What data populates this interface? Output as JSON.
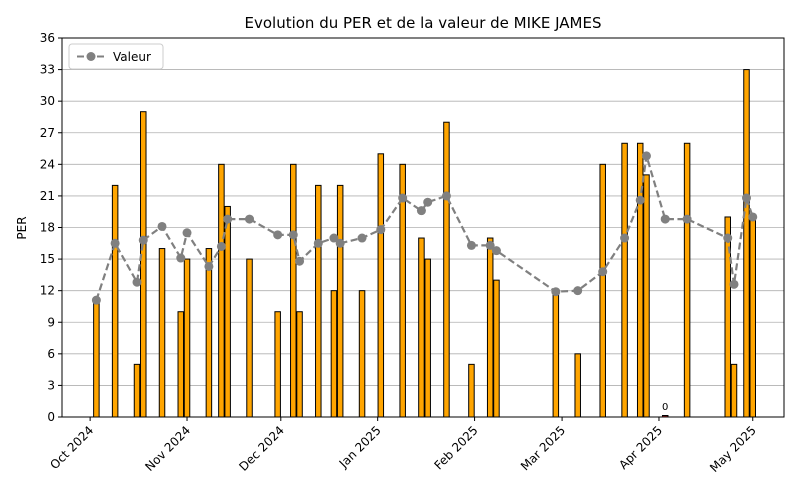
{
  "chart_data": {
    "type": "bar",
    "title": "Evolution du PER et de la valeur de MIKE JAMES",
    "ylabel": "PER",
    "xlabel": "",
    "ylim": [
      0,
      36
    ],
    "yticks": [
      0,
      3,
      6,
      9,
      12,
      15,
      18,
      21,
      24,
      27,
      30,
      33,
      36
    ],
    "xlim": [
      "2024-09-22",
      "2025-05-11"
    ],
    "xticks": [
      {
        "date": "2024-10-01",
        "label": "Oct 2024"
      },
      {
        "date": "2024-11-01",
        "label": "Nov 2024"
      },
      {
        "date": "2024-12-01",
        "label": "Dec 2024"
      },
      {
        "date": "2025-01-01",
        "label": "Jan 2025"
      },
      {
        "date": "2025-02-01",
        "label": "Feb 2025"
      },
      {
        "date": "2025-03-01",
        "label": "Mar 2025"
      },
      {
        "date": "2025-04-01",
        "label": "Apr 2025"
      },
      {
        "date": "2025-05-01",
        "label": "May 2025"
      }
    ],
    "grid": "horizontal",
    "legend_position": "top-left",
    "bar_color": "#ffa500",
    "line_color": "#808080",
    "series": [
      {
        "type": "bar",
        "points": [
          {
            "date": "2024-10-03",
            "value": 11
          },
          {
            "date": "2024-10-09",
            "value": 22
          },
          {
            "date": "2024-10-16",
            "value": 5
          },
          {
            "date": "2024-10-18",
            "value": 29
          },
          {
            "date": "2024-10-24",
            "value": 16
          },
          {
            "date": "2024-10-30",
            "value": 10
          },
          {
            "date": "2024-11-01",
            "value": 15
          },
          {
            "date": "2024-11-08",
            "value": 16
          },
          {
            "date": "2024-11-12",
            "value": 24
          },
          {
            "date": "2024-11-14",
            "value": 20
          },
          {
            "date": "2024-11-21",
            "value": 15
          },
          {
            "date": "2024-11-30",
            "value": 10
          },
          {
            "date": "2024-12-05",
            "value": 24
          },
          {
            "date": "2024-12-07",
            "value": 10
          },
          {
            "date": "2024-12-13",
            "value": 22
          },
          {
            "date": "2024-12-18",
            "value": 12
          },
          {
            "date": "2024-12-20",
            "value": 22
          },
          {
            "date": "2024-12-27",
            "value": 12
          },
          {
            "date": "2025-01-02",
            "value": 25
          },
          {
            "date": "2025-01-09",
            "value": 24
          },
          {
            "date": "2025-01-15",
            "value": 17
          },
          {
            "date": "2025-01-17",
            "value": 15
          },
          {
            "date": "2025-01-23",
            "value": 28
          },
          {
            "date": "2025-01-31",
            "value": 5
          },
          {
            "date": "2025-02-06",
            "value": 17
          },
          {
            "date": "2025-02-08",
            "value": 13
          },
          {
            "date": "2025-02-27",
            "value": 12
          },
          {
            "date": "2025-03-06",
            "value": 6
          },
          {
            "date": "2025-03-14",
            "value": 24
          },
          {
            "date": "2025-03-21",
            "value": 26
          },
          {
            "date": "2025-03-26",
            "value": 26
          },
          {
            "date": "2025-03-28",
            "value": 23
          },
          {
            "date": "2025-04-03",
            "value": 0
          },
          {
            "date": "2025-04-10",
            "value": 26
          },
          {
            "date": "2025-04-23",
            "value": 19
          },
          {
            "date": "2025-04-25",
            "value": 5
          },
          {
            "date": "2025-04-29",
            "value": 33
          },
          {
            "date": "2025-05-01",
            "value": 19
          }
        ],
        "labels": [
          {
            "date": "2025-04-03",
            "text": "0"
          }
        ]
      },
      {
        "type": "line",
        "name": "Valeur",
        "points": [
          {
            "date": "2024-10-03",
            "value": 11.1
          },
          {
            "date": "2024-10-09",
            "value": 16.5
          },
          {
            "date": "2024-10-16",
            "value": 12.8
          },
          {
            "date": "2024-10-18",
            "value": 16.8
          },
          {
            "date": "2024-10-24",
            "value": 18.1
          },
          {
            "date": "2024-10-30",
            "value": 15.1
          },
          {
            "date": "2024-11-01",
            "value": 17.5
          },
          {
            "date": "2024-11-08",
            "value": 14.3
          },
          {
            "date": "2024-11-12",
            "value": 16.2
          },
          {
            "date": "2024-11-14",
            "value": 18.8
          },
          {
            "date": "2024-11-21",
            "value": 18.8
          },
          {
            "date": "2024-11-30",
            "value": 17.3
          },
          {
            "date": "2024-12-05",
            "value": 17.3
          },
          {
            "date": "2024-12-07",
            "value": 14.8
          },
          {
            "date": "2024-12-13",
            "value": 16.5
          },
          {
            "date": "2024-12-18",
            "value": 17.0
          },
          {
            "date": "2024-12-20",
            "value": 16.5
          },
          {
            "date": "2024-12-27",
            "value": 17.0
          },
          {
            "date": "2025-01-02",
            "value": 17.8
          },
          {
            "date": "2025-01-09",
            "value": 20.8
          },
          {
            "date": "2025-01-15",
            "value": 19.6
          },
          {
            "date": "2025-01-17",
            "value": 20.4
          },
          {
            "date": "2025-01-23",
            "value": 21.0
          },
          {
            "date": "2025-01-31",
            "value": 16.3
          },
          {
            "date": "2025-02-06",
            "value": 16.3
          },
          {
            "date": "2025-02-08",
            "value": 15.8
          },
          {
            "date": "2025-02-27",
            "value": 11.9
          },
          {
            "date": "2025-03-06",
            "value": 12.0
          },
          {
            "date": "2025-03-14",
            "value": 13.8
          },
          {
            "date": "2025-03-21",
            "value": 17.0
          },
          {
            "date": "2025-03-26",
            "value": 20.6
          },
          {
            "date": "2025-03-28",
            "value": 24.8
          },
          {
            "date": "2025-04-03",
            "value": 18.8
          },
          {
            "date": "2025-04-10",
            "value": 18.8
          },
          {
            "date": "2025-04-23",
            "value": 17.0
          },
          {
            "date": "2025-04-25",
            "value": 12.6
          },
          {
            "date": "2025-04-29",
            "value": 20.8
          },
          {
            "date": "2025-05-01",
            "value": 19.0
          }
        ]
      }
    ]
  }
}
